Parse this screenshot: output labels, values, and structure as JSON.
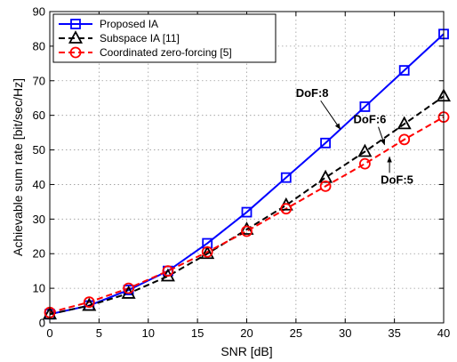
{
  "chart_data": {
    "type": "line",
    "xlabel": "SNR [dB]",
    "ylabel": "Achievable sum rate [bit/sec/Hz]",
    "xlim": [
      0,
      40
    ],
    "ylim": [
      0,
      90
    ],
    "xticks": [
      0,
      5,
      10,
      15,
      20,
      25,
      30,
      35,
      40
    ],
    "yticks": [
      0,
      10,
      20,
      30,
      40,
      50,
      60,
      70,
      80,
      90
    ],
    "grid": true,
    "legend_position": "top-left",
    "x": [
      0,
      4,
      8,
      12,
      16,
      20,
      24,
      28,
      32,
      36,
      40
    ],
    "series": [
      {
        "name": "Proposed IA",
        "color": "#0000ff",
        "marker": "square",
        "line_style": "solid",
        "values": [
          2.5,
          5.0,
          9.5,
          15.0,
          23.0,
          32.0,
          42.0,
          52.0,
          62.5,
          73.0,
          83.5
        ]
      },
      {
        "name": "Subspace IA [11]",
        "color": "#000000",
        "marker": "triangle",
        "line_style": "dashed",
        "values": [
          2.5,
          5.0,
          8.5,
          13.5,
          20.0,
          27.0,
          34.0,
          42.0,
          49.5,
          57.5,
          65.5
        ]
      },
      {
        "name": "Coordinated zero-forcing [5]",
        "color": "#ff0000",
        "marker": "circle",
        "line_style": "dashed",
        "values": [
          3.0,
          6.0,
          10.0,
          15.0,
          20.5,
          26.5,
          33.0,
          39.5,
          46.0,
          53.0,
          59.5
        ]
      }
    ],
    "annotations": [
      {
        "text": "DoF:8",
        "points_to": [
          29.5,
          56.0
        ]
      },
      {
        "text": "DoF:6",
        "points_to": [
          34.0,
          51.5
        ]
      },
      {
        "text": "DoF:5",
        "points_to": [
          34.5,
          48.0
        ]
      }
    ]
  }
}
